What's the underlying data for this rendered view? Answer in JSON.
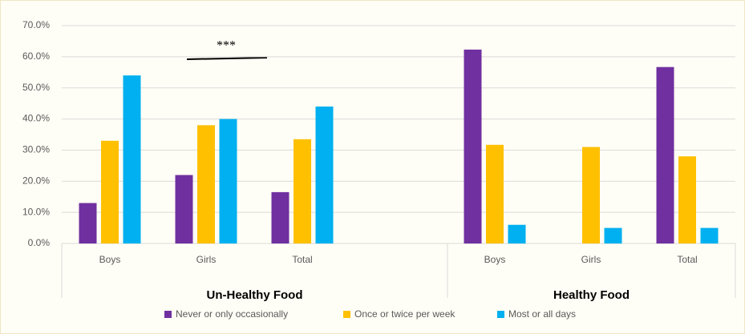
{
  "chart_data": {
    "type": "bar",
    "categories": [
      "Boys",
      "Girls",
      "Total",
      null,
      "Boys",
      "Girls",
      "Total"
    ],
    "group_labels": [
      "Un-Healthy Food",
      "Healthy Food"
    ],
    "series": [
      {
        "name": "Never or only occasionally",
        "color": "#7030a0",
        "values": [
          13,
          22,
          16.5,
          null,
          62.3,
          null,
          56.7
        ]
      },
      {
        "name": "Once or twice per week",
        "color": "#ffc000",
        "values": [
          33,
          38,
          33.5,
          null,
          31.7,
          31,
          28
        ]
      },
      {
        "name": "Most or all days",
        "color": "#00b0f0",
        "values": [
          54,
          40,
          44,
          null,
          6,
          5,
          5
        ]
      }
    ],
    "annotation": "***",
    "ylim": [
      0,
      70
    ],
    "yticks": [
      {
        "value": 0,
        "label": "0.0%"
      },
      {
        "value": 10,
        "label": "10.0%"
      },
      {
        "value": 20,
        "label": "20.0%"
      },
      {
        "value": 30,
        "label": "30.0%"
      },
      {
        "value": 40,
        "label": "40.0%"
      },
      {
        "value": 50,
        "label": "50.0%"
      },
      {
        "value": 60,
        "label": "60.0%"
      },
      {
        "value": 70,
        "label": "70.0%"
      }
    ],
    "grid": true,
    "legend": "bottom"
  }
}
